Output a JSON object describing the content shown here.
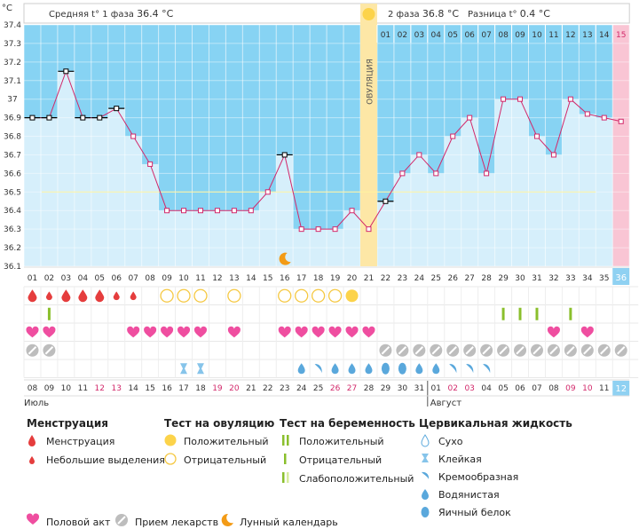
{
  "header": {
    "unit": "°C",
    "phase1_label": "Средняя t° 1 фаза",
    "phase1_value": "36.4 °C",
    "phase2_label": "2 фаза",
    "phase2_value": "36.8 °C",
    "diff_label": "Разница t°",
    "diff_value": "0.4 °C"
  },
  "chart_data": {
    "type": "line",
    "y_ticks": [
      "37.4",
      "37.3",
      "37.2",
      "37.1",
      "37",
      "36.9",
      "36.8",
      "36.7",
      "36.6",
      "36.5",
      "36.4",
      "36.3",
      "36.2",
      "36.1"
    ],
    "ylim": [
      36.1,
      37.4
    ],
    "cycle_days": [
      "01",
      "02",
      "03",
      "04",
      "05",
      "06",
      "07",
      "08",
      "09",
      "10",
      "11",
      "12",
      "13",
      "14",
      "15",
      "16",
      "17",
      "18",
      "19",
      "20",
      "21",
      "22",
      "23",
      "24",
      "25",
      "26",
      "27",
      "28",
      "29",
      "30",
      "31",
      "32",
      "33",
      "34",
      "35",
      "36"
    ],
    "temperatures": [
      36.9,
      36.9,
      37.15,
      36.9,
      36.9,
      36.95,
      36.8,
      36.65,
      36.4,
      36.4,
      36.4,
      36.4,
      36.4,
      36.4,
      36.5,
      36.7,
      36.3,
      36.3,
      36.3,
      36.4,
      36.3,
      36.45,
      36.6,
      36.7,
      36.6,
      36.8,
      36.9,
      36.6,
      37.0,
      37.0,
      36.8,
      36.7,
      37.0,
      36.92,
      36.9,
      36.88
    ],
    "marked_days": [
      1,
      2,
      3,
      4,
      5,
      6,
      16,
      22
    ],
    "ovulation_day": 21,
    "ovulation_label": "ОВУЛЯЦИЯ",
    "coverline": 36.5,
    "luteal_days": [
      "01",
      "02",
      "03",
      "04",
      "05",
      "06",
      "07",
      "08",
      "09",
      "10",
      "11",
      "12",
      "13",
      "14",
      "15"
    ],
    "current_day": 36,
    "moon_day": 16,
    "menstruation": [
      2,
      1,
      2,
      2,
      2,
      1,
      1,
      0,
      0,
      0,
      0,
      0,
      0,
      0,
      0,
      0,
      0,
      0,
      0,
      0,
      0,
      0,
      0,
      0,
      0,
      0,
      0,
      0,
      0,
      0,
      0,
      0,
      0,
      0,
      0,
      0
    ],
    "ovulation_test": [
      0,
      0,
      0,
      0,
      0,
      0,
      0,
      0,
      2,
      2,
      2,
      0,
      2,
      0,
      0,
      2,
      2,
      2,
      2,
      1,
      0,
      0,
      0,
      0,
      0,
      0,
      0,
      0,
      0,
      0,
      0,
      0,
      0,
      0,
      0,
      0
    ],
    "pregnancy_test": [
      0,
      1,
      0,
      0,
      0,
      0,
      0,
      0,
      0,
      0,
      0,
      0,
      0,
      0,
      0,
      0,
      0,
      0,
      0,
      0,
      0,
      0,
      0,
      0,
      0,
      0,
      0,
      0,
      1,
      1,
      1,
      0,
      1,
      0,
      0,
      0
    ],
    "intercourse": [
      1,
      1,
      0,
      0,
      0,
      0,
      1,
      1,
      1,
      1,
      1,
      0,
      1,
      0,
      0,
      1,
      1,
      1,
      1,
      1,
      1,
      0,
      0,
      0,
      0,
      0,
      0,
      0,
      0,
      0,
      0,
      1,
      0,
      1,
      0,
      0
    ],
    "medication": [
      1,
      1,
      0,
      0,
      0,
      0,
      0,
      0,
      0,
      0,
      0,
      0,
      0,
      0,
      0,
      0,
      0,
      0,
      0,
      0,
      0,
      1,
      1,
      1,
      1,
      1,
      1,
      1,
      1,
      1,
      1,
      1,
      1,
      1,
      1,
      1
    ],
    "fluid": [
      0,
      0,
      0,
      0,
      0,
      0,
      0,
      0,
      0,
      2,
      2,
      0,
      0,
      0,
      0,
      0,
      4,
      3,
      4,
      4,
      4,
      5,
      5,
      4,
      4,
      3,
      3,
      3,
      0,
      0,
      0,
      0,
      0,
      0,
      0,
      0
    ],
    "dates": [
      "08",
      "09",
      "10",
      "11",
      "12",
      "13",
      "14",
      "15",
      "16",
      "17",
      "18",
      "19",
      "20",
      "21",
      "22",
      "23",
      "24",
      "25",
      "26",
      "27",
      "28",
      "29",
      "30",
      "31",
      "01",
      "02",
      "03",
      "04",
      "05",
      "06",
      "07",
      "08",
      "09",
      "10",
      "11",
      "12"
    ],
    "red_dates": [
      4,
      5,
      11,
      12,
      18,
      19,
      25,
      26,
      32,
      33
    ],
    "month_july": "Июль",
    "month_august": "Август",
    "colors": {
      "bg_blue": "#87d3f3",
      "bar": "#d6effb",
      "line": "#d2286a",
      "ovulation": "#fde7a6",
      "current_col": "#f9c5d4",
      "current_cell": "#8fd1f2"
    }
  },
  "legend": {
    "menstruation": {
      "title": "Менструация",
      "items": [
        "Менструация",
        "Небольшие выделения"
      ]
    },
    "ovulation_test": {
      "title": "Тест на овуляцию",
      "items": [
        "Положительный",
        "Отрицательный"
      ]
    },
    "pregnancy_test": {
      "title": "Тест на беременность",
      "items": [
        "Положительный",
        "Отрицательный",
        "Слабоположительный"
      ]
    },
    "cervical": {
      "title": "Цервикальная жидкость",
      "items": [
        "Сухо",
        "Клейкая",
        "Кремообразная",
        "Водянистая",
        "Яичный белок"
      ]
    },
    "bottom": {
      "intercourse": "Половой акт",
      "medication": "Прием лекарств",
      "lunar": "Лунный календарь"
    }
  }
}
